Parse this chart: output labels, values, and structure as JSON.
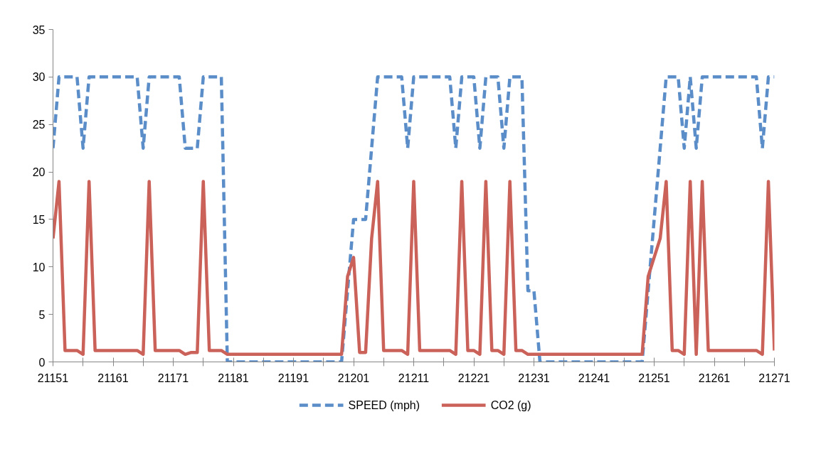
{
  "chart_data": {
    "type": "line",
    "x": [
      21151,
      21152,
      21153,
      21154,
      21155,
      21156,
      21157,
      21158,
      21159,
      21160,
      21161,
      21162,
      21163,
      21164,
      21165,
      21166,
      21167,
      21168,
      21169,
      21170,
      21171,
      21172,
      21173,
      21174,
      21175,
      21176,
      21177,
      21178,
      21179,
      21180,
      21181,
      21182,
      21183,
      21184,
      21185,
      21186,
      21187,
      21188,
      21189,
      21190,
      21191,
      21192,
      21193,
      21194,
      21195,
      21196,
      21197,
      21198,
      21199,
      21200,
      21201,
      21202,
      21203,
      21204,
      21205,
      21206,
      21207,
      21208,
      21209,
      21210,
      21211,
      21212,
      21213,
      21214,
      21215,
      21216,
      21217,
      21218,
      21219,
      21220,
      21221,
      21222,
      21223,
      21224,
      21225,
      21226,
      21227,
      21228,
      21229,
      21230,
      21231,
      21232,
      21233,
      21234,
      21235,
      21236,
      21237,
      21238,
      21239,
      21240,
      21241,
      21242,
      21243,
      21244,
      21245,
      21246,
      21247,
      21248,
      21249,
      21250,
      21251,
      21252,
      21253,
      21254,
      21255,
      21256,
      21257,
      21258,
      21259,
      21260,
      21261,
      21262,
      21263,
      21264,
      21265,
      21266,
      21267,
      21268,
      21269,
      21270,
      21271
    ],
    "series": [
      {
        "name": "SPEED (mph)",
        "color": "#5b8ec9",
        "line_style": "dashed",
        "values": [
          22.5,
          30,
          30,
          30,
          30,
          22.5,
          30,
          30,
          30,
          30,
          30,
          30,
          30,
          30,
          30,
          22.5,
          30,
          30,
          30,
          30,
          30,
          30,
          22.5,
          22.5,
          22.5,
          30,
          30,
          30,
          30,
          0,
          0,
          0,
          0,
          0,
          0,
          0,
          0,
          0,
          0,
          0,
          0,
          0,
          0,
          0,
          0,
          0,
          0,
          0,
          0,
          7.5,
          15,
          15,
          15,
          22.5,
          30,
          30,
          30,
          30,
          30,
          22.5,
          30,
          30,
          30,
          30,
          30,
          30,
          30,
          22.5,
          30,
          30,
          30,
          22.5,
          30,
          30,
          30,
          22.5,
          30,
          30,
          30,
          7.5,
          7.5,
          0,
          0,
          0,
          0,
          0,
          0,
          0,
          0,
          0,
          0,
          0,
          0,
          0,
          0,
          0,
          0,
          0,
          0,
          7.5,
          15,
          22.5,
          30,
          30,
          30,
          22.5,
          30,
          22.5,
          30,
          30,
          30,
          30,
          30,
          30,
          30,
          30,
          30,
          30,
          22.5,
          30,
          30
        ]
      },
      {
        "name": "CO2 (g)",
        "color": "#cb625a",
        "line_style": "solid",
        "values": [
          13,
          19,
          1.2,
          1.2,
          1.2,
          0.8,
          19,
          1.2,
          1.2,
          1.2,
          1.2,
          1.2,
          1.2,
          1.2,
          1.2,
          0.8,
          19,
          1.2,
          1.2,
          1.2,
          1.2,
          1.2,
          0.8,
          1,
          1,
          19,
          1.2,
          1.2,
          1.2,
          0.8,
          0.8,
          0.8,
          0.8,
          0.8,
          0.8,
          0.8,
          0.8,
          0.8,
          0.8,
          0.8,
          0.8,
          0.8,
          0.8,
          0.8,
          0.8,
          0.8,
          0.8,
          0.8,
          0.8,
          9,
          11,
          1,
          1,
          13,
          19,
          1.2,
          1.2,
          1.2,
          1.2,
          0.8,
          19,
          1.2,
          1.2,
          1.2,
          1.2,
          1.2,
          1.2,
          0.8,
          19,
          1.2,
          1.2,
          0.8,
          19,
          1.2,
          1.2,
          0.8,
          19,
          1.2,
          1.2,
          0.8,
          0.8,
          0.8,
          0.8,
          0.8,
          0.8,
          0.8,
          0.8,
          0.8,
          0.8,
          0.8,
          0.8,
          0.8,
          0.8,
          0.8,
          0.8,
          0.8,
          0.8,
          0.8,
          0.8,
          9,
          11,
          13,
          19,
          1.2,
          1.2,
          0.8,
          19,
          0.8,
          19,
          1.2,
          1.2,
          1.2,
          1.2,
          1.2,
          1.2,
          1.2,
          1.2,
          1.2,
          0.8,
          19,
          1.2
        ]
      }
    ],
    "xlim": [
      21151,
      21271
    ],
    "xticks": [
      21151,
      {
        "value": 21156,
        "label": null
      },
      21161,
      {
        "value": 21166,
        "label": null
      },
      21171,
      {
        "value": 21176,
        "label": null
      },
      21181,
      {
        "value": 21186,
        "label": null
      },
      21191,
      {
        "value": 21196,
        "label": null
      },
      21201,
      {
        "value": 21206,
        "label": null
      },
      21211,
      {
        "value": 21216,
        "label": null
      },
      21221,
      {
        "value": 21226,
        "label": null
      },
      21231,
      {
        "value": 21236,
        "label": null
      },
      21241,
      {
        "value": 21246,
        "label": null
      },
      21251,
      {
        "value": 21256,
        "label": null
      },
      21261,
      {
        "value": 21266,
        "label": null
      },
      21271
    ],
    "ylim": [
      0,
      35
    ],
    "yticks": [
      0,
      5,
      10,
      15,
      20,
      25,
      30,
      35
    ],
    "legend": "bottom"
  }
}
